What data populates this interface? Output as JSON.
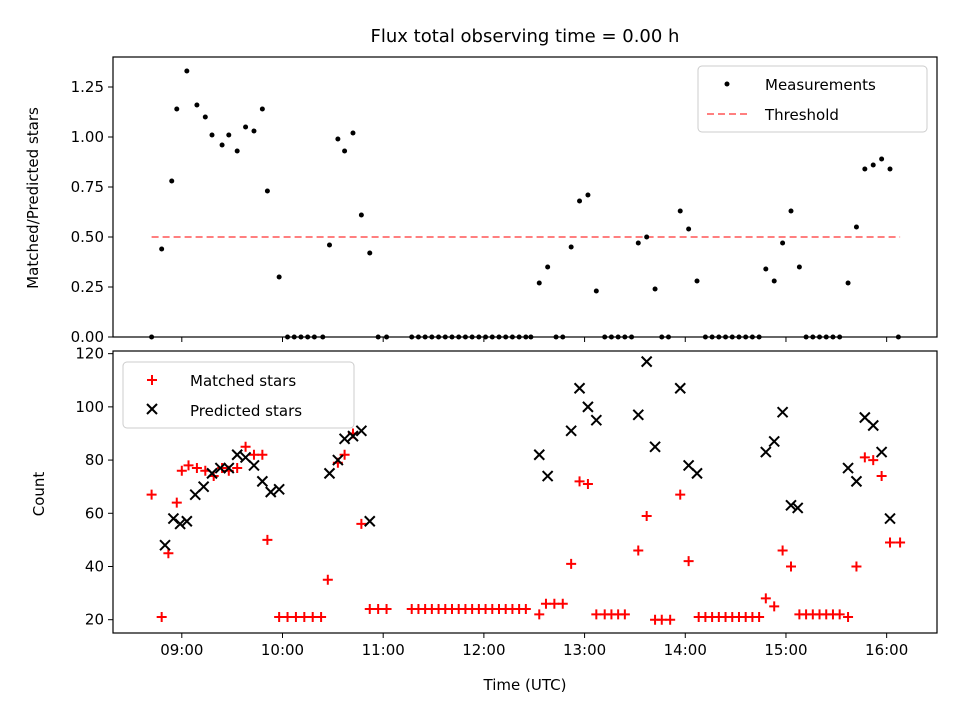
{
  "chart_data": [
    {
      "type": "scatter",
      "title": "Flux total observing time = 0.00 h",
      "xlabel": "",
      "ylabel": "Matched/Predicted stars",
      "xlim": [
        "08:19",
        "16:30"
      ],
      "ylim": [
        0,
        1.4
      ],
      "yticks": [
        0,
        0.25,
        0.5,
        0.75,
        1.0,
        1.25
      ],
      "ytick_labels": [
        "0.00",
        "0.25",
        "0.50",
        "0.75",
        "1.00",
        "1.25"
      ],
      "legend_position": "top-right",
      "grid": false,
      "threshold": {
        "name": "Threshold",
        "value": 0.5,
        "x_start": "08:42",
        "x_end": "16:08",
        "color": "#ff7f7f",
        "style": "dashed"
      },
      "series": [
        {
          "name": "Measurements",
          "color": "#000000",
          "marker": "dot",
          "points": [
            [
              "08:42",
              0.0
            ],
            [
              "08:48",
              0.44
            ],
            [
              "08:54",
              0.78
            ],
            [
              "08:57",
              1.14
            ],
            [
              "09:03",
              1.33
            ],
            [
              "09:09",
              1.16
            ],
            [
              "09:14",
              1.1
            ],
            [
              "09:18",
              1.01
            ],
            [
              "09:24",
              0.96
            ],
            [
              "09:28",
              1.01
            ],
            [
              "09:33",
              0.93
            ],
            [
              "09:38",
              1.05
            ],
            [
              "09:43",
              1.03
            ],
            [
              "09:48",
              1.14
            ],
            [
              "09:51",
              0.73
            ],
            [
              "09:58",
              0.3
            ],
            [
              "10:03",
              0.0
            ],
            [
              "10:07",
              0.0
            ],
            [
              "10:11",
              0.0
            ],
            [
              "10:15",
              0.0
            ],
            [
              "10:19",
              0.0
            ],
            [
              "10:24",
              0.0
            ],
            [
              "10:28",
              0.46
            ],
            [
              "10:33",
              0.99
            ],
            [
              "10:37",
              0.93
            ],
            [
              "10:42",
              1.02
            ],
            [
              "10:47",
              0.61
            ],
            [
              "10:52",
              0.42
            ],
            [
              "10:57",
              0.0
            ],
            [
              "11:02",
              0.0
            ],
            [
              "11:17",
              0.0
            ],
            [
              "11:21",
              0.0
            ],
            [
              "11:25",
              0.0
            ],
            [
              "11:29",
              0.0
            ],
            [
              "11:33",
              0.0
            ],
            [
              "11:37",
              0.0
            ],
            [
              "11:41",
              0.0
            ],
            [
              "11:45",
              0.0
            ],
            [
              "11:49",
              0.0
            ],
            [
              "11:53",
              0.0
            ],
            [
              "11:57",
              0.0
            ],
            [
              "12:01",
              0.0
            ],
            [
              "12:05",
              0.0
            ],
            [
              "12:09",
              0.0
            ],
            [
              "12:13",
              0.0
            ],
            [
              "12:17",
              0.0
            ],
            [
              "12:21",
              0.0
            ],
            [
              "12:25",
              0.0
            ],
            [
              "12:28",
              0.0
            ],
            [
              "12:33",
              0.27
            ],
            [
              "12:38",
              0.35
            ],
            [
              "12:43",
              0.0
            ],
            [
              "12:47",
              0.0
            ],
            [
              "12:52",
              0.45
            ],
            [
              "12:57",
              0.68
            ],
            [
              "13:02",
              0.71
            ],
            [
              "13:07",
              0.23
            ],
            [
              "13:12",
              0.0
            ],
            [
              "13:16",
              0.0
            ],
            [
              "13:20",
              0.0
            ],
            [
              "13:24",
              0.0
            ],
            [
              "13:28",
              0.0
            ],
            [
              "13:32",
              0.47
            ],
            [
              "13:37",
              0.5
            ],
            [
              "13:42",
              0.24
            ],
            [
              "13:46",
              0.0
            ],
            [
              "13:50",
              0.0
            ],
            [
              "13:57",
              0.63
            ],
            [
              "14:02",
              0.54
            ],
            [
              "14:07",
              0.28
            ],
            [
              "14:12",
              0.0
            ],
            [
              "14:16",
              0.0
            ],
            [
              "14:20",
              0.0
            ],
            [
              "14:24",
              0.0
            ],
            [
              "14:28",
              0.0
            ],
            [
              "14:32",
              0.0
            ],
            [
              "14:36",
              0.0
            ],
            [
              "14:40",
              0.0
            ],
            [
              "14:44",
              0.0
            ],
            [
              "14:48",
              0.34
            ],
            [
              "14:53",
              0.28
            ],
            [
              "14:58",
              0.47
            ],
            [
              "15:03",
              0.63
            ],
            [
              "15:08",
              0.35
            ],
            [
              "15:12",
              0.0
            ],
            [
              "15:16",
              0.0
            ],
            [
              "15:20",
              0.0
            ],
            [
              "15:24",
              0.0
            ],
            [
              "15:28",
              0.0
            ],
            [
              "15:32",
              0.0
            ],
            [
              "15:37",
              0.27
            ],
            [
              "15:42",
              0.55
            ],
            [
              "15:47",
              0.84
            ],
            [
              "15:52",
              0.86
            ],
            [
              "15:57",
              0.89
            ],
            [
              "16:02",
              0.84
            ],
            [
              "16:07",
              0.0
            ]
          ]
        }
      ]
    },
    {
      "type": "scatter",
      "title": "",
      "xlabel": "Time (UTC)",
      "ylabel": "Count",
      "xlim": [
        "08:19",
        "16:30"
      ],
      "ylim": [
        15,
        121
      ],
      "yticks": [
        20,
        40,
        60,
        80,
        100,
        120
      ],
      "ytick_labels": [
        "20",
        "40",
        "60",
        "80",
        "100",
        "120"
      ],
      "xticks": [
        "09:00",
        "10:00",
        "11:00",
        "12:00",
        "13:00",
        "14:00",
        "15:00",
        "16:00"
      ],
      "xtick_labels": [
        "09:00",
        "10:00",
        "11:00",
        "12:00",
        "13:00",
        "14:00",
        "15:00",
        "16:00"
      ],
      "legend_position": "top-left",
      "grid": false,
      "series": [
        {
          "name": "Matched stars",
          "color": "#ff0000",
          "marker": "plus",
          "points": [
            [
              "08:42",
              67
            ],
            [
              "08:48",
              21
            ],
            [
              "08:52",
              45
            ],
            [
              "08:57",
              64
            ],
            [
              "09:00",
              76
            ],
            [
              "09:04",
              78
            ],
            [
              "09:09",
              77
            ],
            [
              "09:14",
              76
            ],
            [
              "09:19",
              74
            ],
            [
              "09:24",
              77
            ],
            [
              "09:28",
              76
            ],
            [
              "09:33",
              77
            ],
            [
              "09:38",
              85
            ],
            [
              "09:43",
              82
            ],
            [
              "09:48",
              82
            ],
            [
              "09:51",
              50
            ],
            [
              "09:58",
              21
            ],
            [
              "10:03",
              21
            ],
            [
              "10:08",
              21
            ],
            [
              "10:13",
              21
            ],
            [
              "10:18",
              21
            ],
            [
              "10:23",
              21
            ],
            [
              "10:27",
              35
            ],
            [
              "10:33",
              79
            ],
            [
              "10:37",
              82
            ],
            [
              "10:42",
              90
            ],
            [
              "10:47",
              56
            ],
            [
              "10:52",
              24
            ],
            [
              "10:57",
              24
            ],
            [
              "11:02",
              24
            ],
            [
              "11:17",
              24
            ],
            [
              "11:21",
              24
            ],
            [
              "11:25",
              24
            ],
            [
              "11:29",
              24
            ],
            [
              "11:33",
              24
            ],
            [
              "11:37",
              24
            ],
            [
              "11:41",
              24
            ],
            [
              "11:45",
              24
            ],
            [
              "11:49",
              24
            ],
            [
              "11:53",
              24
            ],
            [
              "11:57",
              24
            ],
            [
              "12:01",
              24
            ],
            [
              "12:05",
              24
            ],
            [
              "12:09",
              24
            ],
            [
              "12:13",
              24
            ],
            [
              "12:17",
              24
            ],
            [
              "12:21",
              24
            ],
            [
              "12:25",
              24
            ],
            [
              "12:33",
              22
            ],
            [
              "12:37",
              26
            ],
            [
              "12:42",
              26
            ],
            [
              "12:47",
              26
            ],
            [
              "12:52",
              41
            ],
            [
              "12:57",
              72
            ],
            [
              "13:02",
              71
            ],
            [
              "13:07",
              22
            ],
            [
              "13:12",
              22
            ],
            [
              "13:16",
              22
            ],
            [
              "13:20",
              22
            ],
            [
              "13:24",
              22
            ],
            [
              "13:32",
              46
            ],
            [
              "13:37",
              59
            ],
            [
              "13:42",
              20
            ],
            [
              "13:46",
              20
            ],
            [
              "13:51",
              20
            ],
            [
              "13:57",
              67
            ],
            [
              "14:02",
              42
            ],
            [
              "14:08",
              21
            ],
            [
              "14:12",
              21
            ],
            [
              "14:16",
              21
            ],
            [
              "14:20",
              21
            ],
            [
              "14:24",
              21
            ],
            [
              "14:28",
              21
            ],
            [
              "14:32",
              21
            ],
            [
              "14:36",
              21
            ],
            [
              "14:40",
              21
            ],
            [
              "14:44",
              21
            ],
            [
              "14:48",
              28
            ],
            [
              "14:53",
              25
            ],
            [
              "14:58",
              46
            ],
            [
              "15:03",
              40
            ],
            [
              "15:08",
              22
            ],
            [
              "15:12",
              22
            ],
            [
              "15:16",
              22
            ],
            [
              "15:20",
              22
            ],
            [
              "15:24",
              22
            ],
            [
              "15:28",
              22
            ],
            [
              "15:32",
              22
            ],
            [
              "15:37",
              21
            ],
            [
              "15:42",
              40
            ],
            [
              "15:47",
              81
            ],
            [
              "15:52",
              80
            ],
            [
              "15:57",
              74
            ],
            [
              "16:02",
              49
            ],
            [
              "16:08",
              49
            ]
          ]
        },
        {
          "name": "Predicted stars",
          "color": "#000000",
          "marker": "x",
          "points": [
            [
              "08:50",
              48
            ],
            [
              "08:55",
              58
            ],
            [
              "08:59",
              56
            ],
            [
              "09:03",
              57
            ],
            [
              "09:08",
              67
            ],
            [
              "09:13",
              70
            ],
            [
              "09:18",
              75
            ],
            [
              "09:23",
              77
            ],
            [
              "09:28",
              77
            ],
            [
              "09:33",
              82
            ],
            [
              "09:38",
              81
            ],
            [
              "09:43",
              78
            ],
            [
              "09:48",
              72
            ],
            [
              "09:53",
              68
            ],
            [
              "09:58",
              69
            ],
            [
              "10:28",
              75
            ],
            [
              "10:33",
              80
            ],
            [
              "10:37",
              88
            ],
            [
              "10:42",
              89
            ],
            [
              "10:47",
              91
            ],
            [
              "10:52",
              57
            ],
            [
              "12:33",
              82
            ],
            [
              "12:38",
              74
            ],
            [
              "12:52",
              91
            ],
            [
              "12:57",
              107
            ],
            [
              "13:02",
              100
            ],
            [
              "13:07",
              95
            ],
            [
              "13:32",
              97
            ],
            [
              "13:37",
              117
            ],
            [
              "13:42",
              85
            ],
            [
              "13:57",
              107
            ],
            [
              "14:02",
              78
            ],
            [
              "14:07",
              75
            ],
            [
              "14:48",
              83
            ],
            [
              "14:53",
              87
            ],
            [
              "14:58",
              98
            ],
            [
              "15:03",
              63
            ],
            [
              "15:07",
              62
            ],
            [
              "15:37",
              77
            ],
            [
              "15:42",
              72
            ],
            [
              "15:47",
              96
            ],
            [
              "15:52",
              93
            ],
            [
              "15:57",
              83
            ],
            [
              "16:02",
              58
            ]
          ]
        }
      ]
    }
  ]
}
